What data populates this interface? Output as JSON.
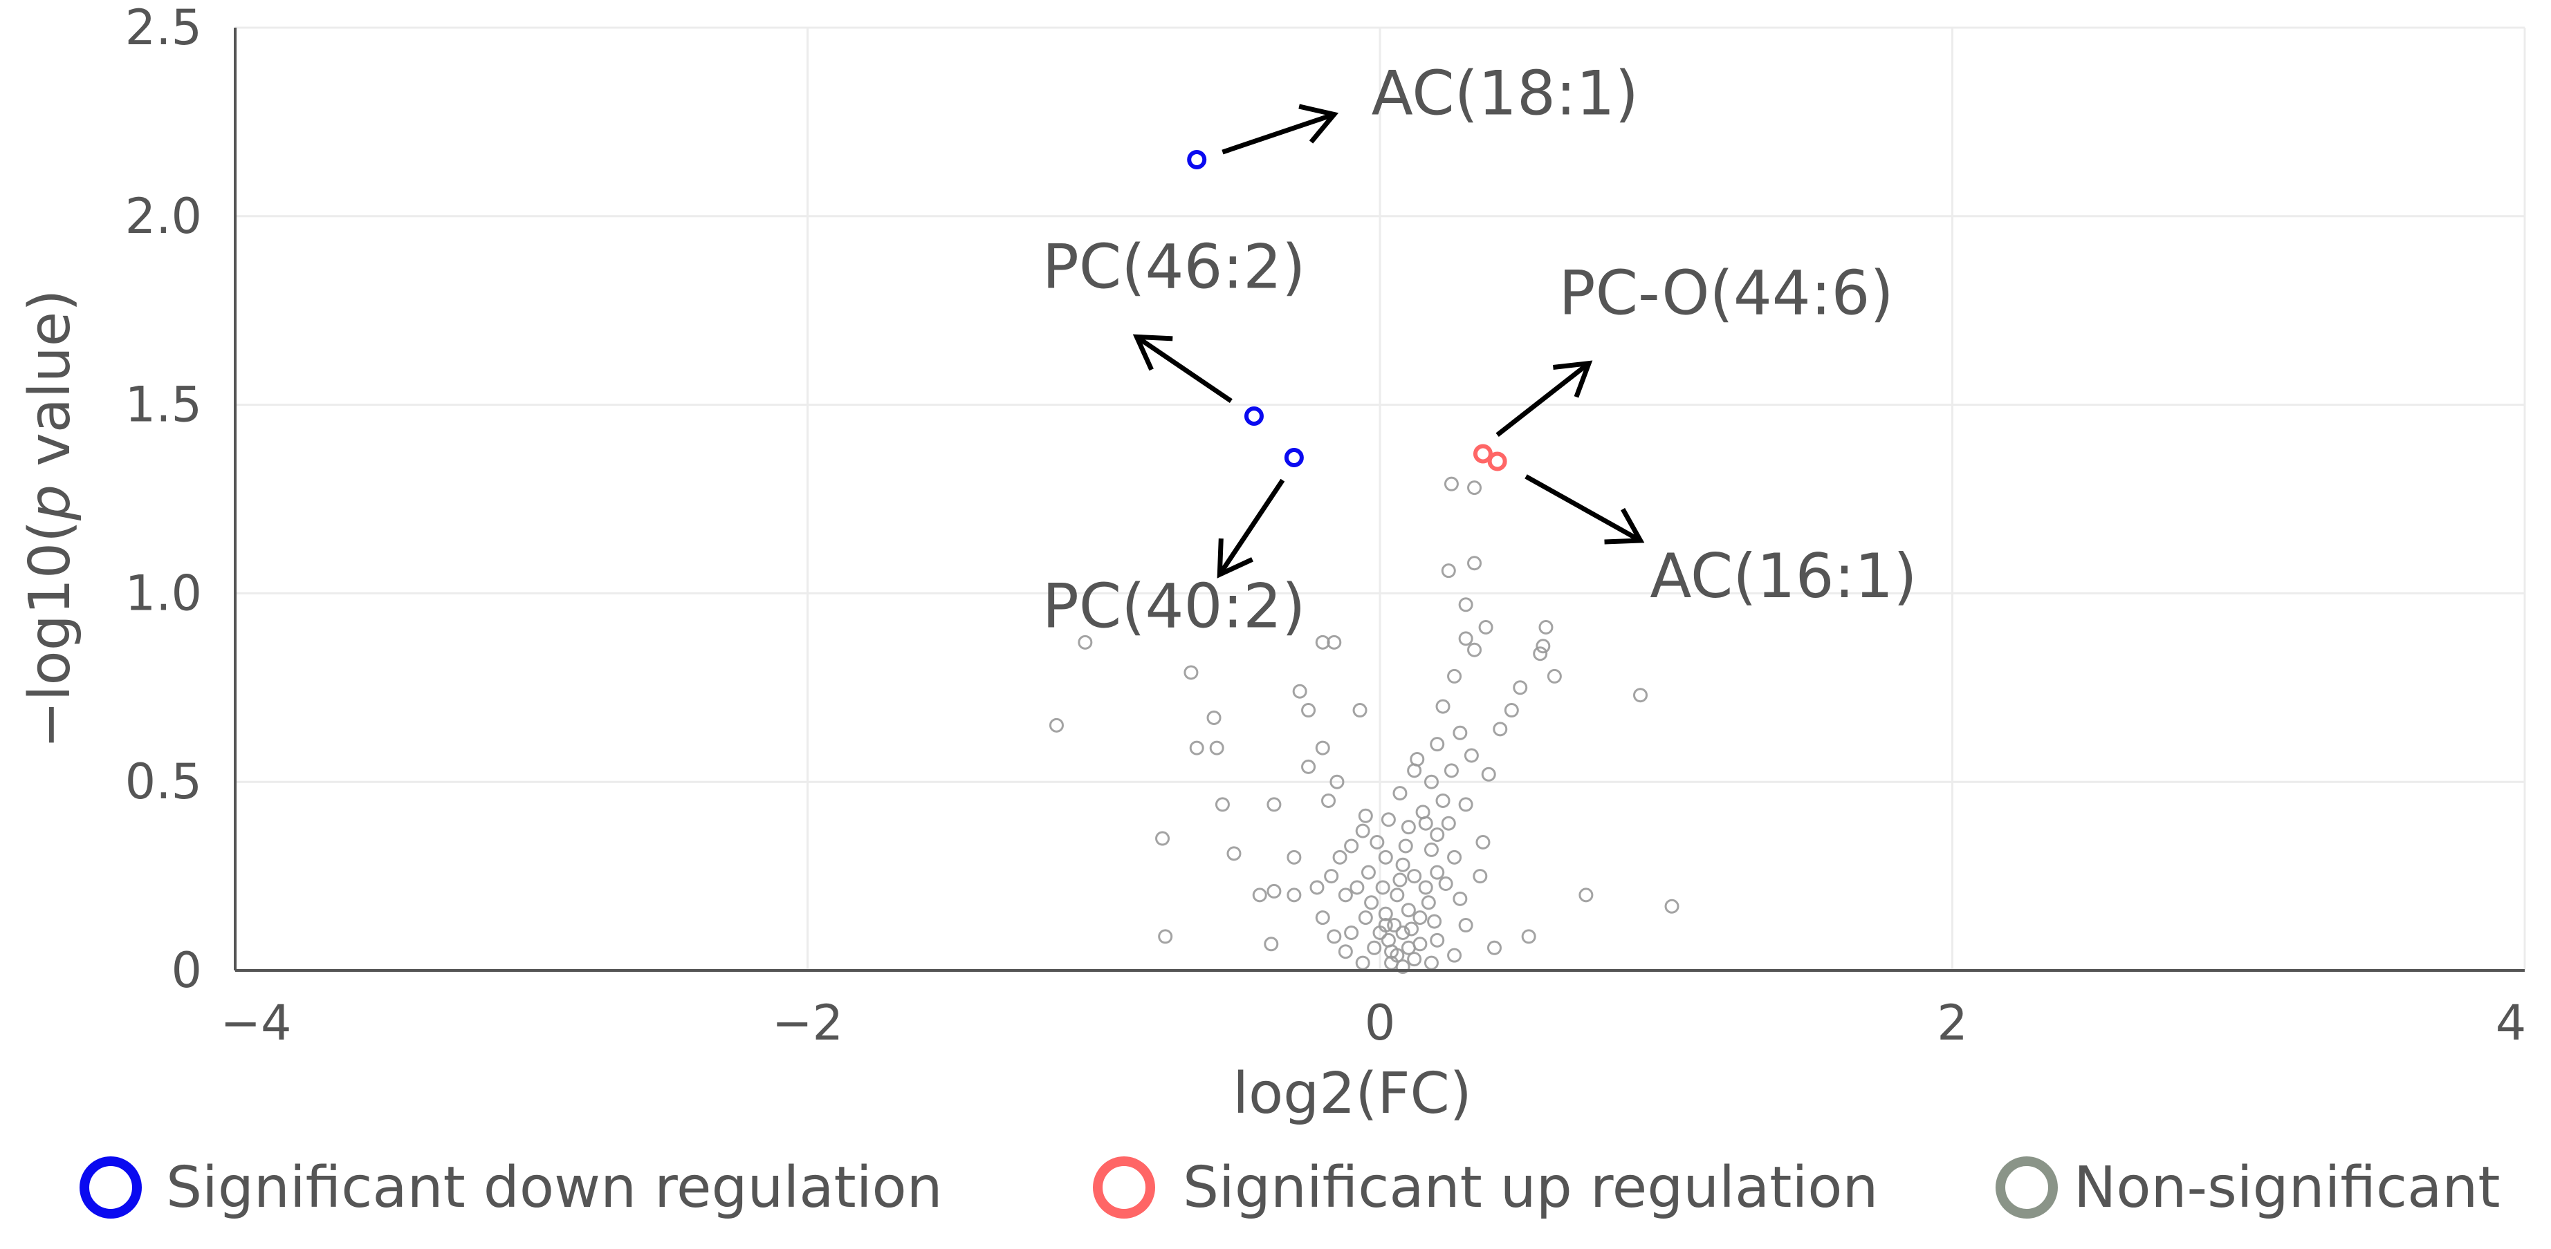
{
  "chart_data": {
    "type": "scatter",
    "title": "",
    "xlabel": "log2(FC)",
    "ylabel_prefix": "−log10(",
    "ylabel_italic": "p",
    "ylabel_suffix": " value)",
    "xlim": [
      -4,
      4
    ],
    "ylim": [
      0,
      2.5
    ],
    "x_ticks": [
      {
        "value": -4,
        "label": "−4"
      },
      {
        "value": -2,
        "label": "−2"
      },
      {
        "value": 0,
        "label": "0"
      },
      {
        "value": 2,
        "label": "2"
      },
      {
        "value": 4,
        "label": "4"
      }
    ],
    "y_ticks": [
      {
        "value": 0,
        "label": "0"
      },
      {
        "value": 0.5,
        "label": "0.5"
      },
      {
        "value": 1,
        "label": "1.0"
      },
      {
        "value": 1.5,
        "label": "1.5"
      },
      {
        "value": 2,
        "label": "2.0"
      },
      {
        "value": 2.5,
        "label": "2.5"
      }
    ],
    "grid": true,
    "legend_position": "bottom",
    "colors": {
      "down": "#0a0af0",
      "up": "#ff6666",
      "nonsig": "#999999",
      "nonsig_legend": "#8a9488",
      "grid": "#ececec",
      "axis": "#555555",
      "text": "#555555",
      "arrow": "#000000"
    },
    "series": [
      {
        "name": "Significant down regulation",
        "key": "down",
        "points": [
          {
            "x": -0.64,
            "y": 2.15
          },
          {
            "x": -0.44,
            "y": 1.47
          },
          {
            "x": -0.3,
            "y": 1.36
          }
        ]
      },
      {
        "name": "Significant up regulation",
        "key": "up",
        "points": [
          {
            "x": 0.36,
            "y": 1.37
          },
          {
            "x": 0.41,
            "y": 1.35
          }
        ]
      },
      {
        "name": "Non-significant",
        "key": "nonsig",
        "points": [
          {
            "x": -1.03,
            "y": 0.87
          },
          {
            "x": -1.13,
            "y": 0.65
          },
          {
            "x": -0.66,
            "y": 0.79
          },
          {
            "x": -0.58,
            "y": 0.67
          },
          {
            "x": -0.64,
            "y": 0.59
          },
          {
            "x": -0.57,
            "y": 0.59
          },
          {
            "x": -0.55,
            "y": 0.44
          },
          {
            "x": -0.51,
            "y": 0.31
          },
          {
            "x": -0.76,
            "y": 0.35
          },
          {
            "x": -0.75,
            "y": 0.09
          },
          {
            "x": -0.38,
            "y": 0.07
          },
          {
            "x": -0.37,
            "y": 0.44
          },
          {
            "x": -0.37,
            "y": 0.21
          },
          {
            "x": -0.3,
            "y": 0.2
          },
          {
            "x": -0.28,
            "y": 0.74
          },
          {
            "x": -0.25,
            "y": 0.69
          },
          {
            "x": -0.2,
            "y": 0.87
          },
          {
            "x": -0.16,
            "y": 0.87
          },
          {
            "x": -0.07,
            "y": 0.69
          },
          {
            "x": -0.25,
            "y": 0.54
          },
          {
            "x": -0.2,
            "y": 0.59
          },
          {
            "x": -0.18,
            "y": 0.45
          },
          {
            "x": -0.15,
            "y": 0.5
          },
          {
            "x": -0.05,
            "y": 0.41
          },
          {
            "x": -0.1,
            "y": 0.33
          },
          {
            "x": -0.22,
            "y": 0.22
          },
          {
            "x": -0.12,
            "y": 0.2
          },
          {
            "x": -0.03,
            "y": 0.18
          },
          {
            "x": 0.02,
            "y": 0.15
          },
          {
            "x": 0.05,
            "y": 0.12
          },
          {
            "x": 0.08,
            "y": 0.1
          },
          {
            "x": 0.03,
            "y": 0.08
          },
          {
            "x": 0.1,
            "y": 0.06
          },
          {
            "x": 0.06,
            "y": 0.04
          },
          {
            "x": 0.12,
            "y": 0.03
          },
          {
            "x": 0.04,
            "y": 0.02
          },
          {
            "x": -0.02,
            "y": 0.06
          },
          {
            "x": 0.0,
            "y": 0.1
          },
          {
            "x": 0.14,
            "y": 0.14
          },
          {
            "x": 0.16,
            "y": 0.22
          },
          {
            "x": 0.12,
            "y": 0.25
          },
          {
            "x": 0.08,
            "y": 0.28
          },
          {
            "x": 0.02,
            "y": 0.3
          },
          {
            "x": -0.04,
            "y": 0.26
          },
          {
            "x": -0.08,
            "y": 0.22
          },
          {
            "x": 0.18,
            "y": 0.32
          },
          {
            "x": 0.2,
            "y": 0.36
          },
          {
            "x": 0.1,
            "y": 0.38
          },
          {
            "x": 0.15,
            "y": 0.42
          },
          {
            "x": 0.22,
            "y": 0.45
          },
          {
            "x": 0.07,
            "y": 0.47
          },
          {
            "x": 0.18,
            "y": 0.5
          },
          {
            "x": 0.25,
            "y": 0.53
          },
          {
            "x": 0.13,
            "y": 0.56
          },
          {
            "x": 0.2,
            "y": 0.6
          },
          {
            "x": 0.28,
            "y": 0.63
          },
          {
            "x": 0.32,
            "y": 0.57
          },
          {
            "x": 0.38,
            "y": 0.52
          },
          {
            "x": 0.3,
            "y": 0.44
          },
          {
            "x": 0.26,
            "y": 0.3
          },
          {
            "x": 0.36,
            "y": 0.34
          },
          {
            "x": 0.22,
            "y": 0.7
          },
          {
            "x": 0.26,
            "y": 0.78
          },
          {
            "x": 0.33,
            "y": 0.85
          },
          {
            "x": 0.37,
            "y": 0.91
          },
          {
            "x": 0.3,
            "y": 0.97
          },
          {
            "x": 0.24,
            "y": 1.06
          },
          {
            "x": 0.33,
            "y": 1.08
          },
          {
            "x": 0.25,
            "y": 1.29
          },
          {
            "x": 0.33,
            "y": 1.28
          },
          {
            "x": 0.3,
            "y": 0.88
          },
          {
            "x": 0.42,
            "y": 0.64
          },
          {
            "x": 0.46,
            "y": 0.69
          },
          {
            "x": 0.49,
            "y": 0.75
          },
          {
            "x": 0.57,
            "y": 0.86
          },
          {
            "x": 0.58,
            "y": 0.91
          },
          {
            "x": 0.61,
            "y": 0.78
          },
          {
            "x": 0.56,
            "y": 0.84
          },
          {
            "x": 0.91,
            "y": 0.73
          },
          {
            "x": 0.72,
            "y": 0.2
          },
          {
            "x": 1.02,
            "y": 0.17
          },
          {
            "x": 0.52,
            "y": 0.09
          },
          {
            "x": 0.4,
            "y": 0.06
          },
          {
            "x": 0.3,
            "y": 0.12
          },
          {
            "x": 0.26,
            "y": 0.04
          },
          {
            "x": 0.2,
            "y": 0.08
          },
          {
            "x": 0.18,
            "y": 0.02
          },
          {
            "x": -0.06,
            "y": 0.02
          },
          {
            "x": -0.12,
            "y": 0.05
          },
          {
            "x": -0.16,
            "y": 0.09
          },
          {
            "x": -0.2,
            "y": 0.14
          },
          {
            "x": -0.14,
            "y": 0.3
          },
          {
            "x": 0.06,
            "y": 0.2
          },
          {
            "x": 0.1,
            "y": 0.16
          },
          {
            "x": 0.01,
            "y": 0.22
          },
          {
            "x": 0.09,
            "y": 0.33
          },
          {
            "x": 0.16,
            "y": 0.39
          },
          {
            "x": 0.2,
            "y": 0.26
          },
          {
            "x": 0.28,
            "y": 0.19
          },
          {
            "x": 0.12,
            "y": 0.53
          },
          {
            "x": 0.03,
            "y": 0.4
          },
          {
            "x": -0.01,
            "y": 0.34
          },
          {
            "x": -0.3,
            "y": 0.3
          },
          {
            "x": -0.42,
            "y": 0.2
          },
          {
            "x": 0.04,
            "y": 0.05
          },
          {
            "x": 0.08,
            "y": 0.01
          },
          {
            "x": 0.14,
            "y": 0.07
          },
          {
            "x": 0.02,
            "y": 0.12
          },
          {
            "x": -0.05,
            "y": 0.14
          },
          {
            "x": 0.11,
            "y": 0.11
          },
          {
            "x": 0.17,
            "y": 0.18
          },
          {
            "x": 0.23,
            "y": 0.23
          },
          {
            "x": -0.1,
            "y": 0.1
          },
          {
            "x": 0.19,
            "y": 0.13
          },
          {
            "x": -0.17,
            "y": 0.25
          },
          {
            "x": 0.07,
            "y": 0.24
          },
          {
            "x": 0.24,
            "y": 0.39
          },
          {
            "x": -0.06,
            "y": 0.37
          },
          {
            "x": 0.35,
            "y": 0.25
          }
        ]
      }
    ],
    "annotations": [
      {
        "text": "AC(18:1)",
        "target": {
          "x": -0.64,
          "y": 2.15
        },
        "arrow_from": {
          "x": -0.55,
          "y": 2.17
        },
        "arrow_to": {
          "x": -0.16,
          "y": 2.27
        },
        "text_at": {
          "x": -0.03,
          "y": 2.27
        },
        "anchor": "start"
      },
      {
        "text": "PC(46:2)",
        "target": {
          "x": -0.44,
          "y": 1.47
        },
        "arrow_from": {
          "x": -0.52,
          "y": 1.51
        },
        "arrow_to": {
          "x": -0.85,
          "y": 1.68
        },
        "text_at": {
          "x": -0.72,
          "y": 1.81
        },
        "anchor": "middle"
      },
      {
        "text": "PC(40:2)",
        "target": {
          "x": -0.3,
          "y": 1.36
        },
        "arrow_from": {
          "x": -0.34,
          "y": 1.3
        },
        "arrow_to": {
          "x": -0.56,
          "y": 1.05
        },
        "text_at": {
          "x": -0.72,
          "y": 0.91
        },
        "anchor": "middle"
      },
      {
        "text": "PC-O(44:6)",
        "target": {
          "x": 0.36,
          "y": 1.37
        },
        "arrow_from": {
          "x": 0.41,
          "y": 1.42
        },
        "arrow_to": {
          "x": 0.73,
          "y": 1.61
        },
        "text_at": {
          "x": 1.21,
          "y": 1.74
        },
        "anchor": "middle"
      },
      {
        "text": "AC(16:1)",
        "target": {
          "x": 0.41,
          "y": 1.35
        },
        "arrow_from": {
          "x": 0.51,
          "y": 1.31
        },
        "arrow_to": {
          "x": 0.91,
          "y": 1.14
        },
        "text_at": {
          "x": 1.41,
          "y": 0.99
        },
        "anchor": "middle"
      }
    ]
  }
}
